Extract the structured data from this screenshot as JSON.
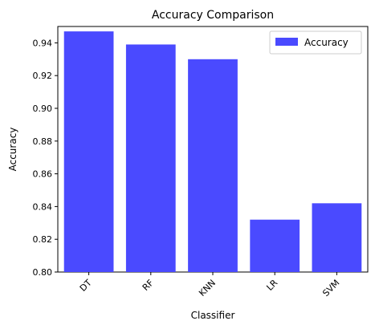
{
  "chart_data": {
    "type": "bar",
    "title": "Accuracy Comparison",
    "xlabel": "Classifier",
    "ylabel": "Accuracy",
    "categories": [
      "DT",
      "RF",
      "KNN",
      "LR",
      "SVM"
    ],
    "series": [
      {
        "name": "Accuracy",
        "values": [
          0.947,
          0.939,
          0.93,
          0.832,
          0.842
        ],
        "color": "#4a4aff"
      }
    ],
    "ylim": [
      0.8,
      0.95
    ],
    "yticks": [
      "0.80",
      "0.82",
      "0.84",
      "0.86",
      "0.88",
      "0.90",
      "0.92",
      "0.94"
    ],
    "xtick_rotation": "45°",
    "legend": {
      "position": "top-right",
      "label": "Accuracy"
    },
    "grid": false
  }
}
